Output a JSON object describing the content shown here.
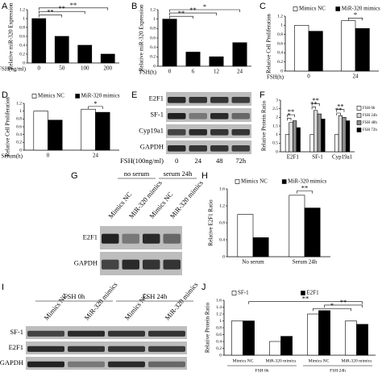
{
  "chart_data": [
    {
      "type": "bar",
      "panel": "A",
      "ylabel": "Relative miR-320 Expression",
      "xlabel": "FSH(ng/ml)",
      "categories": [
        "0",
        "50",
        "100",
        "200"
      ],
      "values": [
        1.0,
        0.6,
        0.4,
        0.2
      ],
      "color": "#000000",
      "ylim": [
        0,
        1.2
      ],
      "yticks": [
        0,
        0.2,
        0.4,
        0.6,
        0.8,
        1,
        1.2
      ],
      "annotations": [
        "**",
        "**",
        "**"
      ]
    },
    {
      "type": "bar",
      "panel": "B",
      "ylabel": "Relative miR-320 Expression",
      "xlabel": "FSH(h)",
      "categories": [
        "0",
        "6",
        "12",
        "24"
      ],
      "values": [
        1.0,
        0.3,
        0.2,
        0.5
      ],
      "color": "#000000",
      "ylim": [
        0,
        1.2
      ],
      "yticks": [
        0,
        0.2,
        0.4,
        0.6,
        0.8,
        1,
        1.2
      ],
      "annotations": [
        "**",
        "**",
        "*"
      ]
    },
    {
      "type": "bar",
      "panel": "C",
      "ylabel": "Relative Cell Proliferation",
      "xlabel": "FSH(h)",
      "categories": [
        "0",
        "24"
      ],
      "series": [
        {
          "name": "Mimics NC",
          "color": "#ffffff",
          "values": [
            1.0,
            1.1
          ]
        },
        {
          "name": "MiR-320 mimics",
          "color": "#000000",
          "values": [
            0.87,
            0.93
          ]
        }
      ],
      "ylim": [
        0,
        1.2
      ],
      "yticks": [
        0,
        0.2,
        0.4,
        0.6,
        0.8,
        1,
        1.2
      ],
      "annotations": [
        "*"
      ]
    },
    {
      "type": "bar",
      "panel": "D",
      "ylabel": "Relative Cell Proliferation",
      "xlabel": "Serum(h)",
      "categories": [
        "0",
        "24"
      ],
      "series": [
        {
          "name": "Mimics NC",
          "color": "#ffffff",
          "values": [
            1.0,
            1.05
          ]
        },
        {
          "name": "MiR-320 mimics",
          "color": "#000000",
          "values": [
            0.77,
            0.97
          ]
        }
      ],
      "ylim": [
        0,
        1.2
      ],
      "yticks": [
        0,
        0.2,
        0.4,
        0.6,
        0.8,
        1,
        1.2
      ],
      "annotations": [
        "*"
      ]
    },
    {
      "type": "bar",
      "panel": "F",
      "ylabel": "Relative Protein Ratio",
      "categories": [
        "E2F1",
        "SF-1",
        "Cyp19a1"
      ],
      "series": [
        {
          "name": "FSH 0h",
          "color": "#ffffff",
          "values": [
            1.0,
            1.0,
            1.0
          ]
        },
        {
          "name": "FSH 24h",
          "color": "#d9d9d9",
          "values": [
            1.7,
            2.4,
            2.1
          ]
        },
        {
          "name": "FSH 48h",
          "color": "#8c8c8c",
          "values": [
            1.8,
            2.2,
            2.0
          ]
        },
        {
          "name": "FSH 72h",
          "color": "#000000",
          "values": [
            1.4,
            1.9,
            1.8
          ]
        }
      ],
      "ylim": [
        0,
        3
      ],
      "yticks": [
        0,
        0.5,
        1,
        1.5,
        2,
        2.5,
        3
      ],
      "annotations": [
        "*",
        "**",
        "**",
        "**",
        "**",
        "**"
      ]
    },
    {
      "type": "bar",
      "panel": "H",
      "ylabel": "Relative E2F1 Ratio",
      "categories": [
        "No serum",
        "Serum 24h"
      ],
      "series": [
        {
          "name": "Mimics NC",
          "color": "#ffffff",
          "values": [
            1.0,
            1.45
          ]
        },
        {
          "name": "MiR-320 mimics",
          "color": "#000000",
          "values": [
            0.45,
            1.15
          ]
        }
      ],
      "ylim": [
        0,
        1.6
      ],
      "yticks": [
        0,
        0.4,
        0.8,
        1.2,
        1.6
      ],
      "annotations": [
        "**"
      ]
    },
    {
      "type": "bar",
      "panel": "J",
      "ylabel": "Relative Protein Ratio",
      "categories": [
        "Mimics NC",
        "MiR-320 mimics",
        "Mimics NC",
        "MiR-320 mimics"
      ],
      "group_labels": [
        "FSH 0h",
        "FSH 24h"
      ],
      "series": [
        {
          "name": "SF-1",
          "color": "#ffffff",
          "values": [
            1.0,
            0.4,
            1.2,
            1.0
          ]
        },
        {
          "name": "E2F1",
          "color": "#000000",
          "values": [
            1.0,
            0.55,
            1.3,
            0.9
          ]
        }
      ],
      "ylim": [
        0,
        1.6
      ],
      "yticks": [
        0,
        0.2,
        0.4,
        0.6,
        0.8,
        1,
        1.2,
        1.4,
        1.6
      ],
      "annotations": [
        "*",
        "**",
        "**"
      ]
    }
  ],
  "blots": [
    {
      "panel": "E",
      "rows": [
        "E2F1",
        "SF-1",
        "Cyp19a1",
        "GAPDH"
      ],
      "xlabel": "FSH(100ng/ml)",
      "columns": [
        "0",
        "24",
        "48",
        "72h"
      ]
    },
    {
      "panel": "G",
      "rows": [
        "E2F1",
        "GAPDH"
      ],
      "groups": [
        "no serum",
        "serum 24h"
      ],
      "columns": [
        "Mimics NC",
        "MiR-320 mimics",
        "Mimics NC",
        "MiR-320 mimics"
      ]
    },
    {
      "panel": "I",
      "rows": [
        "SF-1",
        "E2F1",
        "GAPDH"
      ],
      "groups": [
        "FSH 0h",
        "FSH 24h"
      ],
      "columns": [
        "Mimics NC",
        "MiR-320 mimics",
        "Mimics NC",
        "MiR-320 mimics"
      ]
    }
  ]
}
